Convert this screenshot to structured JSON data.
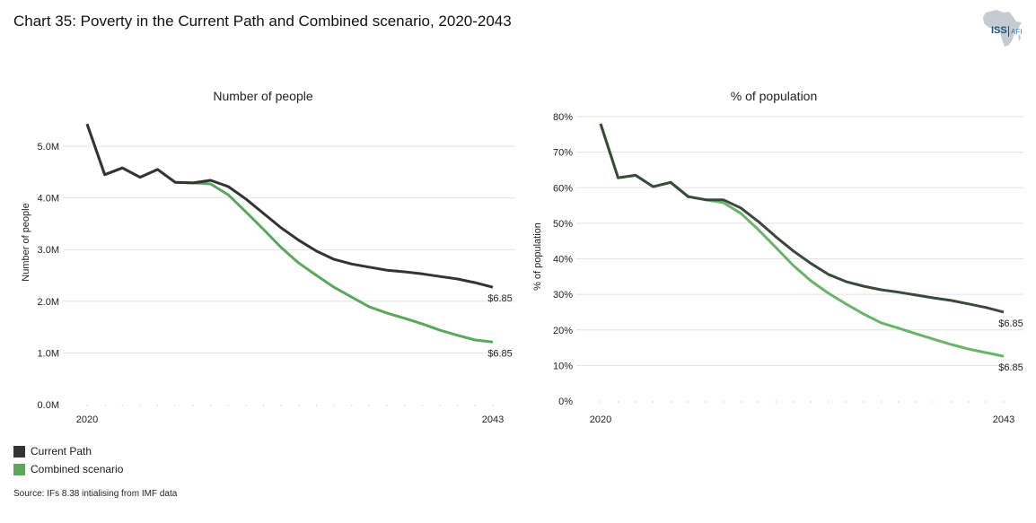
{
  "page": {
    "title": "Chart 35: Poverty in the Current Path and Combined scenario, 2020-2043",
    "logo_text": "ISS",
    "logo_subtext": "AFI",
    "source": "Source: IFs 8.38 intialising from IMF data"
  },
  "legend": [
    {
      "label": "Current Path",
      "color": "#333333"
    },
    {
      "label": "Combined scenario",
      "color": "#5aa85a"
    }
  ],
  "chart_data": [
    {
      "type": "line",
      "title": "Number of people",
      "xlabel": "",
      "ylabel": "Number of people",
      "x": [
        2020,
        2021,
        2022,
        2023,
        2024,
        2025,
        2026,
        2027,
        2028,
        2029,
        2030,
        2031,
        2032,
        2033,
        2034,
        2035,
        2036,
        2037,
        2038,
        2039,
        2040,
        2041,
        2042,
        2043
      ],
      "x_tick_labels": [
        "2020",
        "2043"
      ],
      "y_ticks": [
        0,
        1,
        2,
        3,
        4,
        5
      ],
      "y_tick_labels": [
        "0.0M",
        "1.0M",
        "2.0M",
        "3.0M",
        "4.0M",
        "5.0M"
      ],
      "ylim": [
        0,
        5.5
      ],
      "unit": "millions",
      "grid": true,
      "series": [
        {
          "name": "Current Path",
          "color": "#333333",
          "end_label": "$6.85",
          "values": [
            5.43,
            4.45,
            4.58,
            4.4,
            4.55,
            4.3,
            4.29,
            4.34,
            4.22,
            3.98,
            3.7,
            3.42,
            3.18,
            2.97,
            2.81,
            2.72,
            2.66,
            2.6,
            2.57,
            2.53,
            2.48,
            2.43,
            2.36,
            2.27
          ]
        },
        {
          "name": "Combined scenario",
          "color": "#5aa85a",
          "end_label": "$6.85",
          "values": [
            5.43,
            4.45,
            4.58,
            4.4,
            4.55,
            4.3,
            4.29,
            4.27,
            4.06,
            3.73,
            3.39,
            3.04,
            2.74,
            2.5,
            2.27,
            2.08,
            1.89,
            1.77,
            1.67,
            1.56,
            1.44,
            1.34,
            1.25,
            1.21
          ]
        }
      ]
    },
    {
      "type": "line",
      "title": "% of population",
      "xlabel": "",
      "ylabel": "% of population",
      "x": [
        2020,
        2021,
        2022,
        2023,
        2024,
        2025,
        2026,
        2027,
        2028,
        2029,
        2030,
        2031,
        2032,
        2033,
        2034,
        2035,
        2036,
        2037,
        2038,
        2039,
        2040,
        2041,
        2042,
        2043
      ],
      "x_tick_labels": [
        "2020",
        "2043"
      ],
      "y_ticks": [
        0,
        10,
        20,
        30,
        40,
        50,
        60,
        70,
        80
      ],
      "y_tick_labels": [
        "0%",
        "10%",
        "20%",
        "30%",
        "40%",
        "50%",
        "60%",
        "70%",
        "80%"
      ],
      "ylim": [
        0,
        80
      ],
      "unit": "percent",
      "grid": true,
      "series": [
        {
          "name": "Current Path",
          "color": "#3a4a3a",
          "end_label": "$6.85",
          "values": [
            78.0,
            62.8,
            63.5,
            60.3,
            61.5,
            57.5,
            56.6,
            56.6,
            54.3,
            50.5,
            46.2,
            42.2,
            38.7,
            35.6,
            33.6,
            32.3,
            31.3,
            30.6,
            29.8,
            29.0,
            28.3,
            27.3,
            26.3,
            25.0
          ]
        },
        {
          "name": "Combined scenario",
          "color": "#6ab46a",
          "end_label": "$6.85",
          "values": [
            78.0,
            62.8,
            63.5,
            60.3,
            61.5,
            57.5,
            56.6,
            55.8,
            52.8,
            48.2,
            43.2,
            38.1,
            33.8,
            30.3,
            27.3,
            24.5,
            22.0,
            20.5,
            18.9,
            17.4,
            15.9,
            14.6,
            13.6,
            12.6
          ]
        }
      ]
    }
  ]
}
